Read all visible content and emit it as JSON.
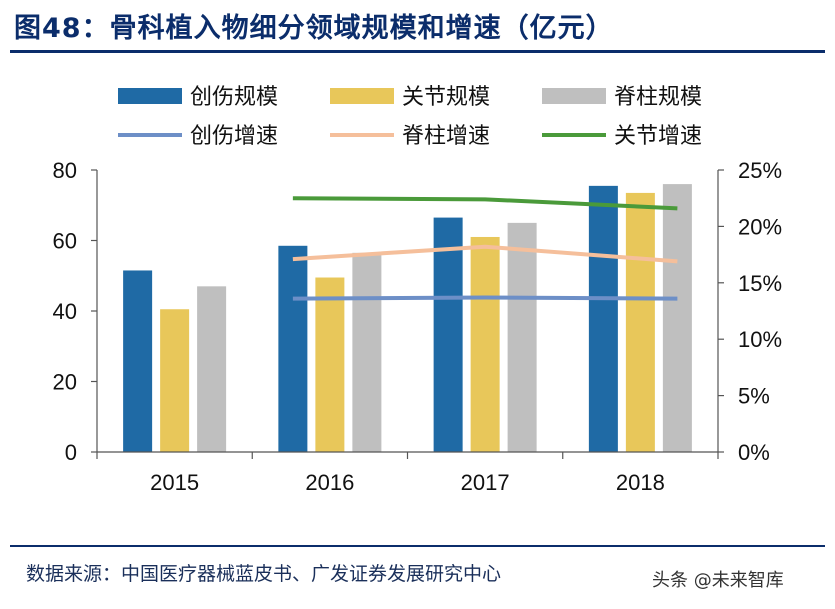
{
  "title": "图48：骨科植入物细分领域规模和增速（亿元）",
  "source": "数据来源：中国医疗器械蓝皮书、广发证券发展研究中心",
  "watermark": "头条 @未来智库",
  "chart_data": {
    "type": "bar",
    "categories": [
      "2015",
      "2016",
      "2017",
      "2018"
    ],
    "series": [
      {
        "name": "创伤规模",
        "kind": "bar",
        "axis": "left",
        "color": "#1f6aa5",
        "values": [
          51.5,
          58.5,
          66.5,
          75.5
        ]
      },
      {
        "name": "关节规模",
        "kind": "bar",
        "axis": "left",
        "color": "#e8c75a",
        "values": [
          40.5,
          49.5,
          61,
          73.5
        ]
      },
      {
        "name": "脊柱规模",
        "kind": "bar",
        "axis": "left",
        "color": "#bfbfbf",
        "values": [
          47,
          56.5,
          65,
          76
        ]
      }
    ],
    "lines": [
      {
        "name": "创伤增速",
        "kind": "line",
        "axis": "right",
        "color": "#6d8fc7",
        "x": [
          "2016",
          "2017",
          "2018"
        ],
        "values": [
          13.6,
          13.7,
          13.6
        ]
      },
      {
        "name": "脊柱增速",
        "kind": "line",
        "axis": "right",
        "color": "#f5bf9b",
        "x": [
          "2016",
          "2017",
          "2018"
        ],
        "values": [
          17.1,
          18.2,
          16.9
        ]
      },
      {
        "name": "关节增速",
        "kind": "line",
        "axis": "right",
        "color": "#4a9a3a",
        "x": [
          "2016",
          "2017",
          "2018"
        ],
        "values": [
          22.5,
          22.4,
          21.6
        ]
      }
    ],
    "legend_order": [
      "创伤规模",
      "关节规模",
      "脊柱规模",
      "创伤增速",
      "脊柱增速",
      "关节增速"
    ],
    "legend_position": "top",
    "y_left": {
      "ylim": [
        0,
        80
      ],
      "ticks": [
        "0",
        "20",
        "40",
        "60",
        "80"
      ]
    },
    "y_right": {
      "ylim": [
        0,
        25
      ],
      "ticks": [
        "0%",
        "5%",
        "10%",
        "15%",
        "20%",
        "25%"
      ]
    },
    "grid": false
  }
}
